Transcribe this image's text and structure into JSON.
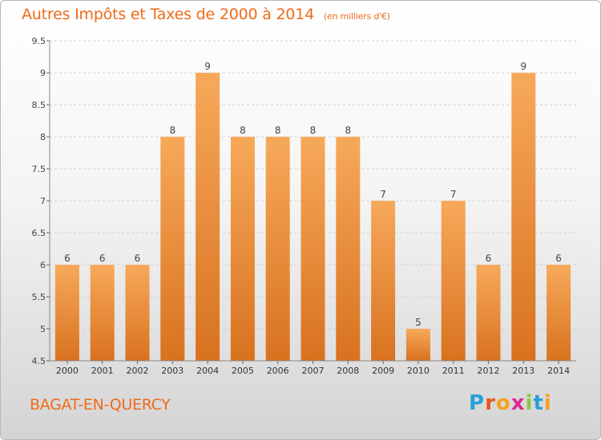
{
  "header": {
    "title": "Autres Impôts et Taxes de 2000 à 2014",
    "subtitle": "(en milliers d'€)"
  },
  "footer": {
    "commune": "BAGAT-EN-QUERCY"
  },
  "logo": {
    "letters": [
      "P",
      "r",
      "o",
      "x",
      "i",
      "t",
      "i"
    ],
    "colors": [
      "#2aa0d8",
      "#e8561e",
      "#f2a21b",
      "#d92a8e",
      "#8cc63f",
      "#2aa0d8",
      "#f2a21b"
    ]
  },
  "colors": {
    "bar_top": "#f7a95a",
    "bar_bottom": "#d8721f",
    "title": "#ee6b1a"
  },
  "chart_data": {
    "type": "bar",
    "title": "Autres Impôts et Taxes de 2000 à 2014",
    "categories": [
      "2000",
      "2001",
      "2002",
      "2003",
      "2004",
      "2005",
      "2006",
      "2007",
      "2008",
      "2009",
      "2010",
      "2011",
      "2012",
      "2013",
      "2014"
    ],
    "values": [
      6,
      6,
      6,
      8,
      9,
      8,
      8,
      8,
      8,
      7,
      5,
      7,
      6,
      9,
      6
    ],
    "ylim": [
      4.5,
      9.5
    ],
    "yticks": [
      "4.5",
      "5",
      "5.5",
      "6",
      "6.5",
      "7",
      "7.5",
      "8",
      "8.5",
      "9",
      "9.5"
    ],
    "grid": true,
    "legend": "none"
  }
}
